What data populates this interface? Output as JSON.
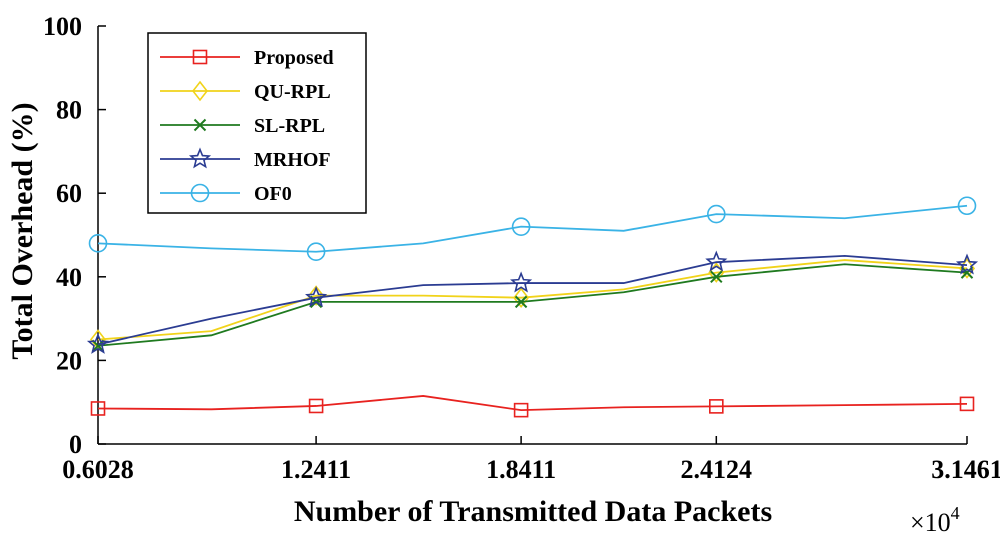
{
  "chart_data": {
    "type": "line",
    "xlabel": "Number of Transmitted Data Packets",
    "ylabel": "Total Overhead (%)",
    "x_multiplier_label": "×10",
    "x_multiplier_exponent": "4",
    "xlim": [
      0.6028,
      3.1461
    ],
    "ylim": [
      0,
      100
    ],
    "x_ticks": [
      0.6028,
      1.2411,
      1.8411,
      2.4124,
      3.1461
    ],
    "x_tick_labels": [
      "0.6028",
      "1.2411",
      "1.8411",
      "2.4124",
      "3.1461"
    ],
    "y_ticks": [
      0,
      20,
      40,
      60,
      80,
      100
    ],
    "y_tick_labels": [
      "0",
      "20",
      "40",
      "60",
      "80",
      "100"
    ],
    "x": [
      0.6028,
      0.9345,
      1.2411,
      1.5545,
      1.8411,
      2.1413,
      2.4124,
      2.7883,
      3.1461
    ],
    "marker_indices": [
      0,
      2,
      4,
      6,
      8
    ],
    "legend_position": "top-left",
    "grid": false,
    "series": [
      {
        "name": "Proposed",
        "color": "#e8221f",
        "marker": "square",
        "values": [
          8.5,
          8.3,
          9.1,
          11.5,
          8.1,
          8.8,
          9.0,
          9.3,
          9.6
        ]
      },
      {
        "name": "QU-RPL",
        "color": "#f1d31a",
        "marker": "diamond",
        "values": [
          25.0,
          27.0,
          35.5,
          35.5,
          35.0,
          37.0,
          41.0,
          44.0,
          42.0
        ]
      },
      {
        "name": "SL-RPL",
        "color": "#1f7a1f",
        "marker": "x",
        "values": [
          23.5,
          26.0,
          34.0,
          34.0,
          34.0,
          36.3,
          40.0,
          43.0,
          41.0
        ]
      },
      {
        "name": "MRHOF",
        "color": "#2b3c92",
        "marker": "star",
        "values": [
          23.8,
          30.0,
          35.0,
          38.0,
          38.5,
          38.5,
          43.5,
          45.0,
          42.8
        ]
      },
      {
        "name": "OF0",
        "color": "#3ab3e6",
        "marker": "circle",
        "values": [
          48.0,
          46.8,
          46.0,
          48.0,
          52.0,
          51.0,
          55.0,
          54.0,
          57.0
        ]
      }
    ]
  }
}
